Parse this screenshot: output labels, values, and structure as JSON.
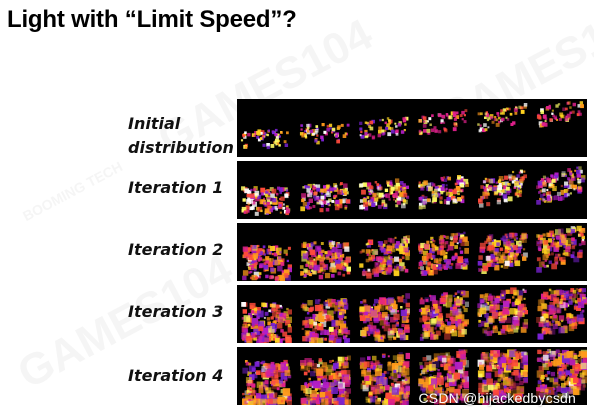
{
  "title": "Light with “Limit Speed”?",
  "rows": [
    {
      "label": "Initial distribution"
    },
    {
      "label": "Iteration 1"
    },
    {
      "label": "Iteration 2"
    },
    {
      "label": "Iteration 3"
    },
    {
      "label": "Iteration 4"
    }
  ],
  "watermark": {
    "games_text": "GAMES104",
    "booming_text": "BOOMING TECH"
  },
  "credit": "CSDN @hijackedbycsdn"
}
